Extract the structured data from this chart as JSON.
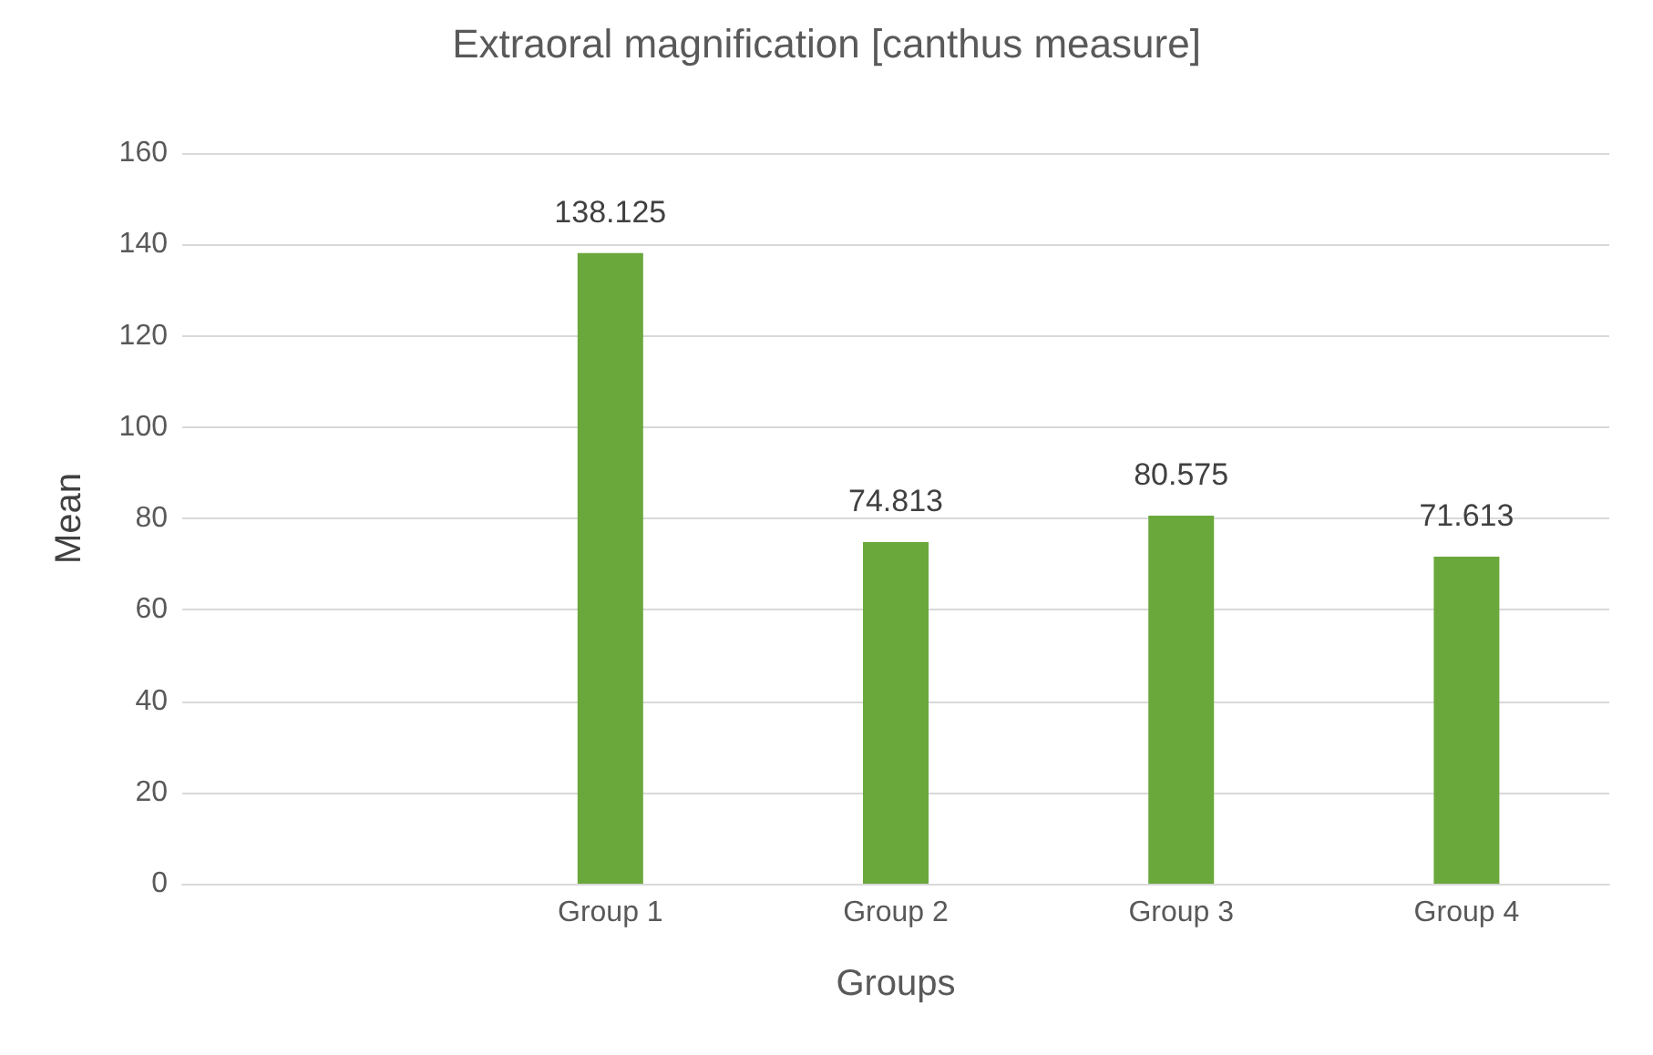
{
  "chart_data": {
    "type": "bar",
    "title": "Extraoral magnification [canthus measure]",
    "xlabel": "Groups",
    "ylabel": "Mean",
    "categories": [
      null,
      "Group 1",
      "Group 2",
      "Group 3",
      "Group 4"
    ],
    "values": [
      null,
      138.125,
      74.813,
      80.575,
      71.613
    ],
    "color": "#6aa83c",
    "data_labels": true,
    "ylim": [
      0,
      160
    ],
    "yticks": [
      0,
      20,
      40,
      60,
      80,
      100,
      120,
      140,
      160
    ],
    "grid": "y"
  }
}
